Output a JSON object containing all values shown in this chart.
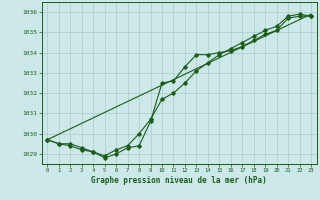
{
  "title": "Graphe pression niveau de la mer (hPa)",
  "bg_color": "#cce8e8",
  "grid_color": "#aacccc",
  "line_color": "#1a5c1a",
  "text_color": "#1a5c1a",
  "xlim": [
    -0.5,
    23.5
  ],
  "ylim": [
    1028.5,
    1036.5
  ],
  "yticks": [
    1029,
    1030,
    1031,
    1032,
    1033,
    1034,
    1035,
    1036
  ],
  "xticks": [
    0,
    1,
    2,
    3,
    4,
    5,
    6,
    7,
    8,
    9,
    10,
    11,
    12,
    13,
    14,
    15,
    16,
    17,
    18,
    19,
    20,
    21,
    22,
    23
  ],
  "line1": [
    1029.7,
    1029.5,
    1029.5,
    1029.3,
    1029.1,
    1028.8,
    1029.0,
    1029.3,
    1029.4,
    1030.6,
    1032.5,
    1032.6,
    1033.3,
    1033.9,
    1033.9,
    1034.0,
    1034.1,
    1034.3,
    1034.6,
    1034.9,
    1035.1,
    1035.7,
    1035.8,
    1035.8
  ],
  "line2": [
    1029.7,
    1029.5,
    1029.4,
    1029.2,
    1029.1,
    1028.9,
    1029.2,
    1029.4,
    1030.0,
    1030.7,
    1031.7,
    1032.0,
    1032.5,
    1033.1,
    1033.5,
    1033.9,
    1034.2,
    1034.5,
    1034.8,
    1035.1,
    1035.3,
    1035.8,
    1035.9,
    1035.8
  ],
  "line3_x": [
    0,
    23
  ],
  "line3_y": [
    1029.7,
    1035.9
  ]
}
